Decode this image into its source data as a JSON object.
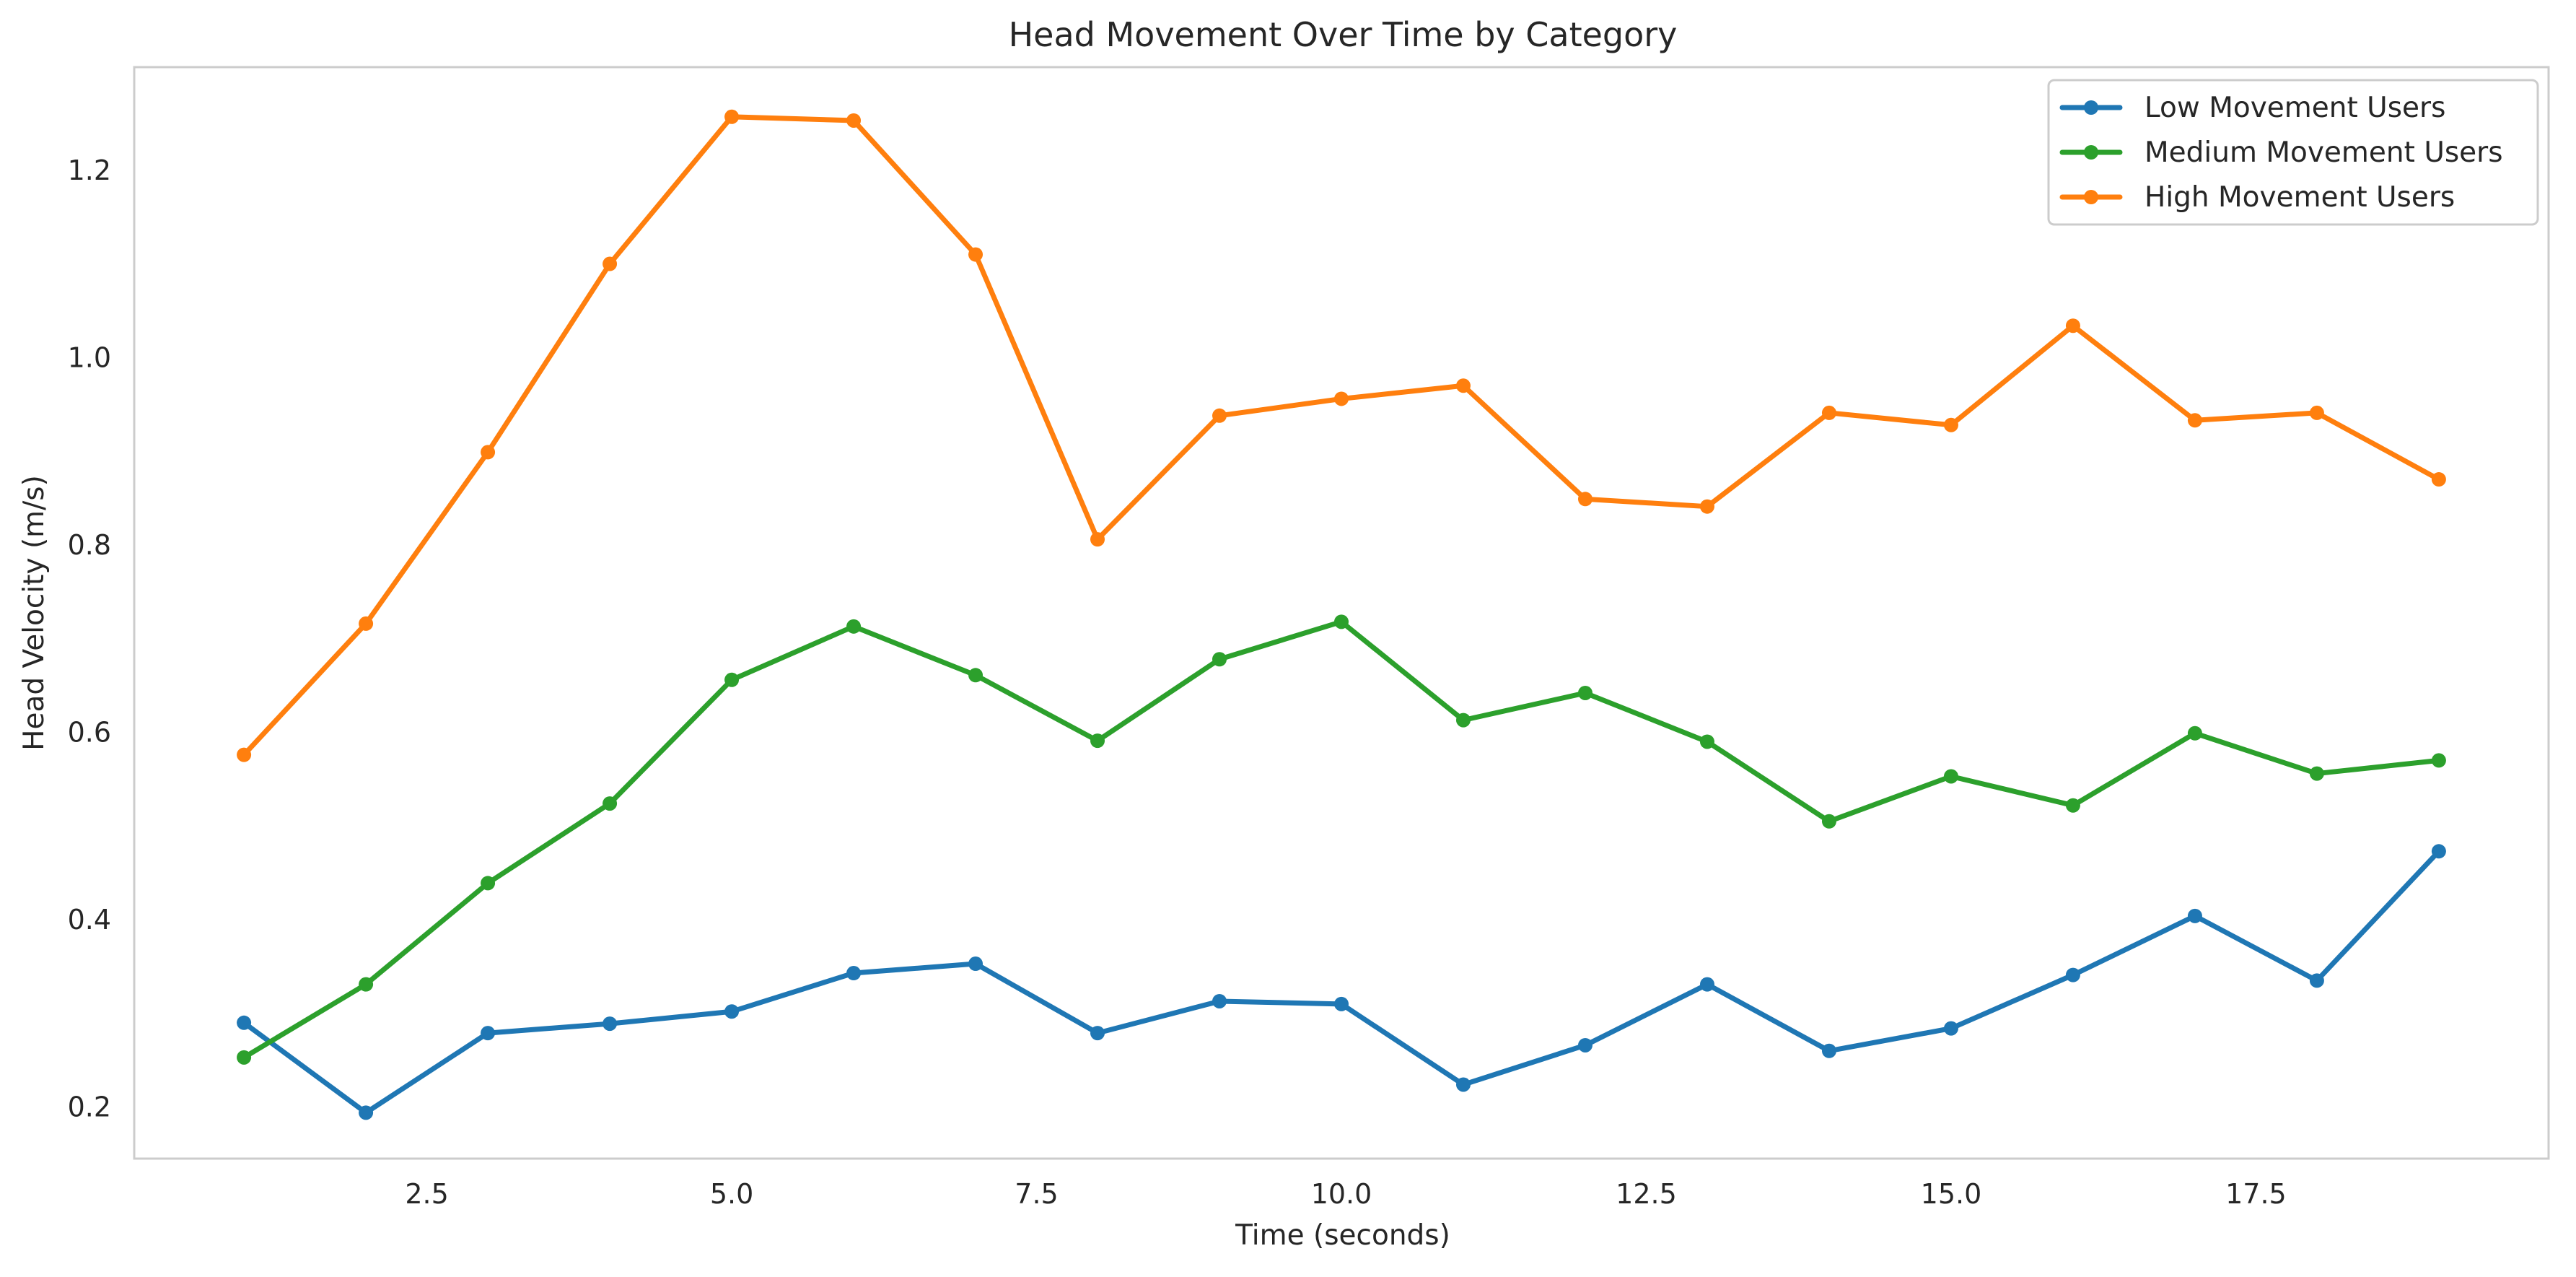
{
  "chart_data": {
    "type": "line",
    "title": "Head Movement Over Time by Category",
    "xlabel": "Time (seconds)",
    "ylabel": "Head Velocity (m/s)",
    "xlim": [
      0.1,
      19.9
    ],
    "ylim": [
      0.145,
      1.31
    ],
    "x_ticks": [
      2.5,
      5.0,
      7.5,
      10.0,
      12.5,
      15.0,
      17.5
    ],
    "x_tick_labels": [
      "2.5",
      "5.0",
      "7.5",
      "10.0",
      "12.5",
      "15.0",
      "17.5"
    ],
    "y_ticks": [
      0.2,
      0.4,
      0.6,
      0.8,
      1.0,
      1.2
    ],
    "y_tick_labels": [
      "0.2",
      "0.4",
      "0.6",
      "0.8",
      "1.0",
      "1.2"
    ],
    "grid": false,
    "legend_position": "top-right",
    "x": [
      1,
      2,
      3,
      4,
      5,
      6,
      7,
      8,
      9,
      10,
      11,
      12,
      13,
      14,
      15,
      16,
      17,
      18,
      19
    ],
    "series": [
      {
        "name": "Low Movement Users",
        "color": "#1f77b4",
        "values": [
          0.29,
          0.194,
          0.279,
          0.289,
          0.302,
          0.343,
          0.353,
          0.279,
          0.313,
          0.31,
          0.224,
          0.266,
          0.331,
          0.26,
          0.284,
          0.341,
          0.404,
          0.335,
          0.473
        ]
      },
      {
        "name": "Medium Movement Users",
        "color": "#2ca02c",
        "values": [
          0.253,
          0.331,
          0.439,
          0.524,
          0.656,
          0.713,
          0.661,
          0.591,
          0.678,
          0.718,
          0.613,
          0.642,
          0.59,
          0.505,
          0.553,
          0.522,
          0.599,
          0.556,
          0.57
        ]
      },
      {
        "name": "High Movement Users",
        "color": "#ff7f0e",
        "values": [
          0.576,
          0.716,
          0.899,
          1.1,
          1.257,
          1.253,
          1.11,
          0.806,
          0.938,
          0.956,
          0.97,
          0.849,
          0.841,
          0.941,
          0.928,
          1.034,
          0.933,
          0.941,
          0.87
        ]
      }
    ]
  }
}
